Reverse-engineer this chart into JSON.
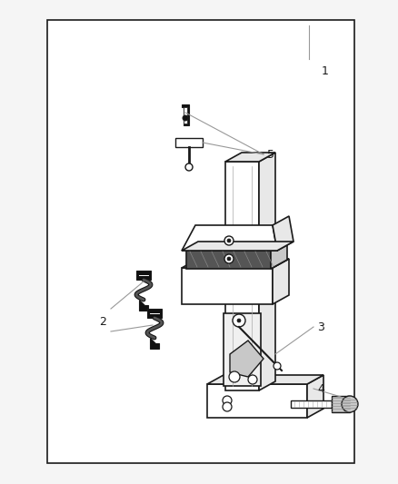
{
  "background_color": "#f5f5f5",
  "border_color": "#1a1a1a",
  "border_linewidth": 1.8,
  "label_fontsize": 9,
  "leader_color": "#999999",
  "part_color": "#1a1a1a",
  "fill_white": "#ffffff",
  "fill_light": "#e8e8e8",
  "fill_mid": "#c8c8c8",
  "fill_dark": "#555555",
  "fill_black": "#111111"
}
